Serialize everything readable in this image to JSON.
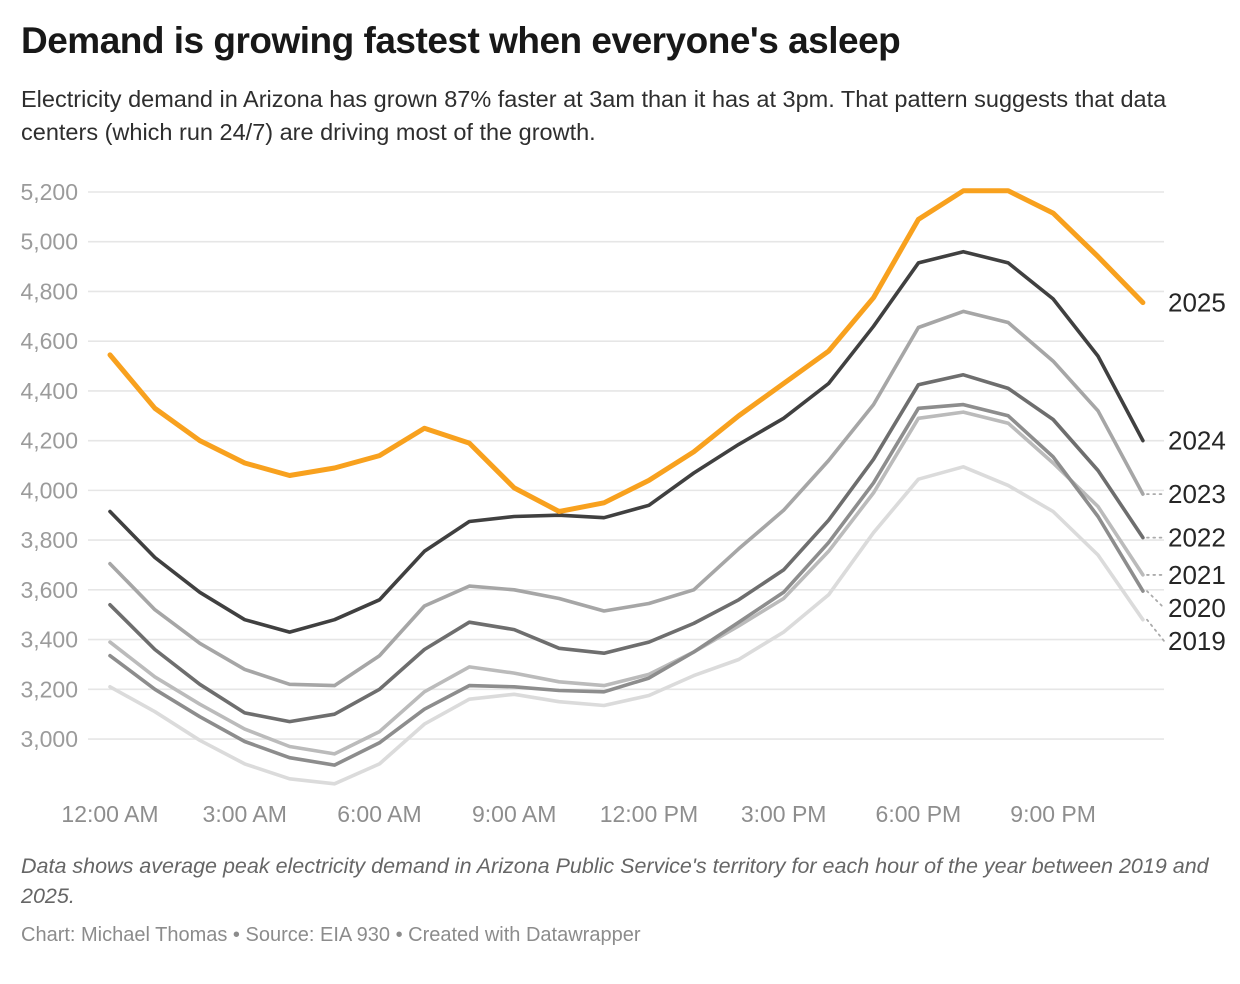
{
  "header": {
    "title": "Demand is growing fastest when everyone's asleep",
    "subtitle": "Electricity demand in Arizona has grown 87% faster at 3am than it has at 3pm. That pattern suggests that data centers (which run 24/7) are driving most of the growth."
  },
  "chart_data": {
    "type": "line",
    "title": "Demand is growing fastest when everyone's asleep",
    "x_unit": "hour of day, 24 hourly points from 12:00 AM to 11:00 PM",
    "grid": true,
    "legend_position": "right-edge direct labels",
    "y_gridline_range": [
      3000,
      5200
    ],
    "y_ticks": [
      {
        "value": 5200,
        "label": "5,200"
      },
      {
        "value": 5000,
        "label": "5,000"
      },
      {
        "value": 4800,
        "label": "4,800"
      },
      {
        "value": 4600,
        "label": "4,600"
      },
      {
        "value": 4400,
        "label": "4,400"
      },
      {
        "value": 4200,
        "label": "4,200"
      },
      {
        "value": 4000,
        "label": "4,000"
      },
      {
        "value": 3800,
        "label": "3,800"
      },
      {
        "value": 3600,
        "label": "3,600"
      },
      {
        "value": 3400,
        "label": "3,400"
      },
      {
        "value": 3200,
        "label": "3,200"
      },
      {
        "value": 3000,
        "label": "3,000"
      }
    ],
    "x_ticks": [
      {
        "hour": 0,
        "label": "12:00 AM"
      },
      {
        "hour": 3,
        "label": "3:00 AM"
      },
      {
        "hour": 6,
        "label": "6:00 AM"
      },
      {
        "hour": 9,
        "label": "9:00 AM"
      },
      {
        "hour": 12,
        "label": "12:00 PM"
      },
      {
        "hour": 15,
        "label": "3:00 PM"
      },
      {
        "hour": 18,
        "label": "6:00 PM"
      },
      {
        "hour": 21,
        "label": "9:00 PM"
      }
    ],
    "accent_color": "#F8A11E",
    "series": [
      {
        "name": "2025",
        "color": "#F8A11E",
        "values": [
          4545,
          4330,
          4200,
          4110,
          4060,
          4090,
          4140,
          4250,
          4190,
          4010,
          3915,
          3950,
          4040,
          4155,
          4300,
          4430,
          4560,
          4775,
          5090,
          5205,
          5205,
          5115,
          4940,
          4755
        ]
      },
      {
        "name": "2024",
        "color": "#404040",
        "values": [
          3915,
          3730,
          3590,
          3480,
          3430,
          3480,
          3560,
          3755,
          3875,
          3895,
          3900,
          3890,
          3940,
          4070,
          4185,
          4290,
          4430,
          4660,
          4915,
          4960,
          4915,
          4770,
          4540,
          4200
        ]
      },
      {
        "name": "2023",
        "color": "#A6A6A6",
        "values": [
          3705,
          3520,
          3385,
          3280,
          3220,
          3215,
          3335,
          3535,
          3615,
          3600,
          3565,
          3515,
          3545,
          3600,
          3765,
          3920,
          4120,
          4345,
          4655,
          4720,
          4675,
          4520,
          4320,
          3985
        ]
      },
      {
        "name": "2022",
        "color": "#6E6E6E",
        "values": [
          3540,
          3360,
          3220,
          3105,
          3070,
          3100,
          3200,
          3360,
          3470,
          3440,
          3365,
          3345,
          3390,
          3465,
          3560,
          3680,
          3880,
          4125,
          4425,
          4465,
          4410,
          4285,
          4080,
          3810
        ]
      },
      {
        "name": "2021",
        "color": "#BBBBBB",
        "values": [
          3390,
          3250,
          3140,
          3040,
          2970,
          2940,
          3030,
          3190,
          3290,
          3265,
          3230,
          3215,
          3260,
          3350,
          3455,
          3565,
          3755,
          3990,
          4290,
          4315,
          4270,
          4110,
          3935,
          3660
        ]
      },
      {
        "name": "2020",
        "color": "#8D8D8D",
        "values": [
          3335,
          3200,
          3090,
          2990,
          2925,
          2895,
          2985,
          3120,
          3215,
          3210,
          3195,
          3190,
          3245,
          3350,
          3470,
          3590,
          3790,
          4030,
          4330,
          4345,
          4300,
          4135,
          3895,
          3595
        ]
      },
      {
        "name": "2019",
        "color": "#DBDBDB",
        "values": [
          3210,
          3110,
          2995,
          2900,
          2840,
          2820,
          2900,
          3060,
          3160,
          3180,
          3150,
          3135,
          3175,
          3255,
          3320,
          3430,
          3580,
          3830,
          4045,
          4095,
          4020,
          3915,
          3740,
          3480
        ]
      }
    ]
  },
  "footer": {
    "note": "Data shows average peak electricity demand in Arizona Public Service's territory for each hour of the year between 2019 and 2025.",
    "credit": "Chart: Michael Thomas • Source: EIA 930 • Created with Datawrapper"
  }
}
